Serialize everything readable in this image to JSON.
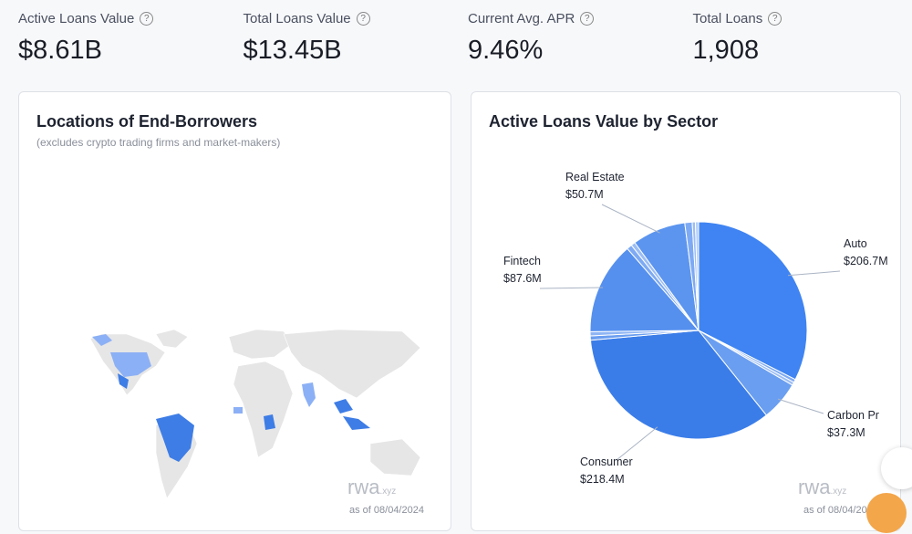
{
  "kpis": [
    {
      "label": "Active Loans Value",
      "value": "$8.61B"
    },
    {
      "label": "Total Loans Value",
      "value": "$13.45B"
    },
    {
      "label": "Current Avg. APR",
      "value": "9.46%"
    },
    {
      "label": "Total Loans",
      "value": "1,908"
    }
  ],
  "map_panel": {
    "title": "Locations of End-Borrowers",
    "subtitle": "(excludes crypto trading firms and market-makers)",
    "logo": "rwa",
    "logo_suffix": "xyz",
    "as_of": "as of 08/04/2024"
  },
  "chart_data": {
    "type": "pie",
    "title": "Active Loans Value by Sector",
    "categories": [
      "Auto",
      null,
      null,
      "Carbon Pr",
      "Consumer",
      null,
      null,
      "Fintech",
      null,
      null,
      "Real Estate",
      null,
      null,
      null
    ],
    "values": [
      206.7,
      3,
      3,
      37.3,
      218.4,
      4,
      4,
      87.6,
      5,
      4,
      50.7,
      7,
      3,
      3
    ],
    "value_labels": [
      "$206.7M",
      null,
      null,
      "$37.3M",
      "$218.4M",
      null,
      null,
      "$87.6M",
      null,
      null,
      "$50.7M",
      null,
      null,
      null
    ],
    "colors": [
      "#3f84f2",
      "#7eaaf3",
      "#9bbdf5",
      "#6a9ef0",
      "#3b7de8",
      "#6a9ef0",
      "#8fb5f4",
      "#5590ee",
      "#7eaaf3",
      "#9bbdf5",
      "#5c95ef",
      "#7eaaf3",
      "#9bbdf5",
      "#b3cdf7"
    ],
    "logo": "rwa",
    "logo_suffix": "xyz",
    "as_of": "as of 08/04/2024"
  }
}
